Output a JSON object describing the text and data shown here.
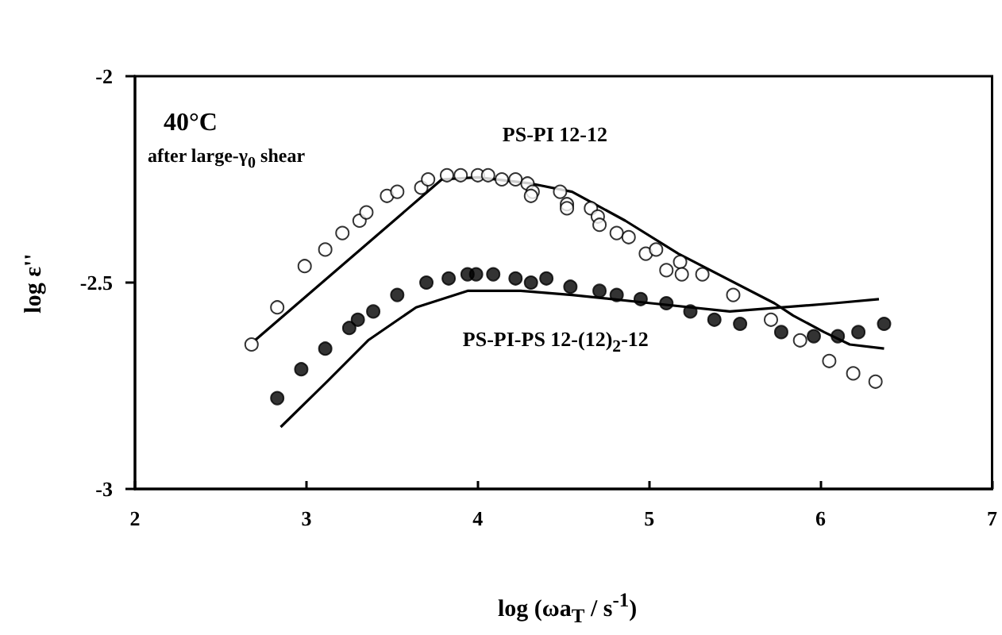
{
  "chart_data": {
    "type": "scatter",
    "xlabel": "log (ωa$_{T}$ / s$^{-1}$)",
    "ylabel": "log ε''",
    "xlim": [
      2,
      7
    ],
    "ylim": [
      -3,
      -2
    ],
    "xticks": [
      2,
      3,
      4,
      5,
      6,
      7
    ],
    "yticks": [
      -3,
      -2.5,
      -2
    ],
    "grid": false,
    "annotations": [
      "40°C",
      "after large-γ$_{0}$ shear"
    ],
    "series": [
      {
        "name": "PS-PI 12-12",
        "marker": "circle",
        "color": "#ffffff",
        "x": [
          2.68,
          2.83,
          2.99,
          3.11,
          3.21,
          3.31,
          3.35,
          3.47,
          3.53,
          3.67,
          3.71,
          3.82,
          3.9,
          4.0,
          4.06,
          4.14,
          4.22,
          4.29,
          4.32,
          4.31,
          4.48,
          4.52,
          4.52,
          4.66,
          4.7,
          4.71,
          4.81,
          4.88,
          4.98,
          5.04,
          5.1,
          5.18,
          5.19,
          5.31,
          5.49,
          5.71,
          5.88,
          6.05,
          6.19,
          6.32
        ],
        "values": [
          -2.65,
          -2.56,
          -2.46,
          -2.42,
          -2.38,
          -2.35,
          -2.33,
          -2.29,
          -2.28,
          -2.27,
          -2.25,
          -2.24,
          -2.24,
          -2.24,
          -2.24,
          -2.25,
          -2.25,
          -2.26,
          -2.28,
          -2.29,
          -2.28,
          -2.31,
          -2.32,
          -2.32,
          -2.34,
          -2.36,
          -2.38,
          -2.39,
          -2.43,
          -2.42,
          -2.47,
          -2.45,
          -2.48,
          -2.48,
          -2.53,
          -2.59,
          -2.64,
          -2.69,
          -2.72,
          -2.74
        ]
      },
      {
        "name": "PS-PI-PS 12-(12)$_{2}$-12",
        "marker": "circle",
        "color": "#000000",
        "x": [
          2.83,
          2.97,
          3.11,
          3.25,
          3.3,
          3.39,
          3.53,
          3.7,
          3.83,
          3.94,
          3.99,
          4.09,
          4.22,
          4.31,
          4.4,
          4.54,
          4.71,
          4.81,
          4.95,
          5.1,
          5.24,
          5.38,
          5.53,
          5.77,
          5.96,
          6.1,
          6.22,
          6.37
        ],
        "values": [
          -2.78,
          -2.71,
          -2.66,
          -2.61,
          -2.59,
          -2.57,
          -2.53,
          -2.5,
          -2.49,
          -2.48,
          -2.48,
          -2.48,
          -2.49,
          -2.5,
          -2.49,
          -2.51,
          -2.52,
          -2.53,
          -2.54,
          -2.55,
          -2.57,
          -2.59,
          -2.6,
          -2.62,
          -2.63,
          -2.63,
          -2.62,
          -2.6
        ]
      },
      {
        "type": "line",
        "marker": "none",
        "line_style": "solid",
        "color": "#000000",
        "x": [
          2.7,
          3.79,
          4.0,
          4.31,
          4.55,
          4.86,
          5.17,
          5.73,
          5.84,
          6.02,
          6.17,
          6.37
        ],
        "values": [
          -2.64,
          -2.25,
          -2.245,
          -2.26,
          -2.28,
          -2.35,
          -2.43,
          -2.55,
          -2.58,
          -2.62,
          -2.65,
          -2.66
        ]
      },
      {
        "type": "line",
        "marker": "none",
        "line_style": "solid",
        "color": "#000000",
        "x": [
          2.85,
          3.12,
          3.36,
          3.64,
          3.94,
          4.25,
          4.55,
          5.01,
          5.47,
          5.78,
          6.08,
          6.34
        ],
        "values": [
          -2.85,
          -2.74,
          -2.64,
          -2.56,
          -2.52,
          -2.52,
          -2.53,
          -2.55,
          -2.57,
          -2.56,
          -2.55,
          -2.54
        ]
      }
    ]
  }
}
